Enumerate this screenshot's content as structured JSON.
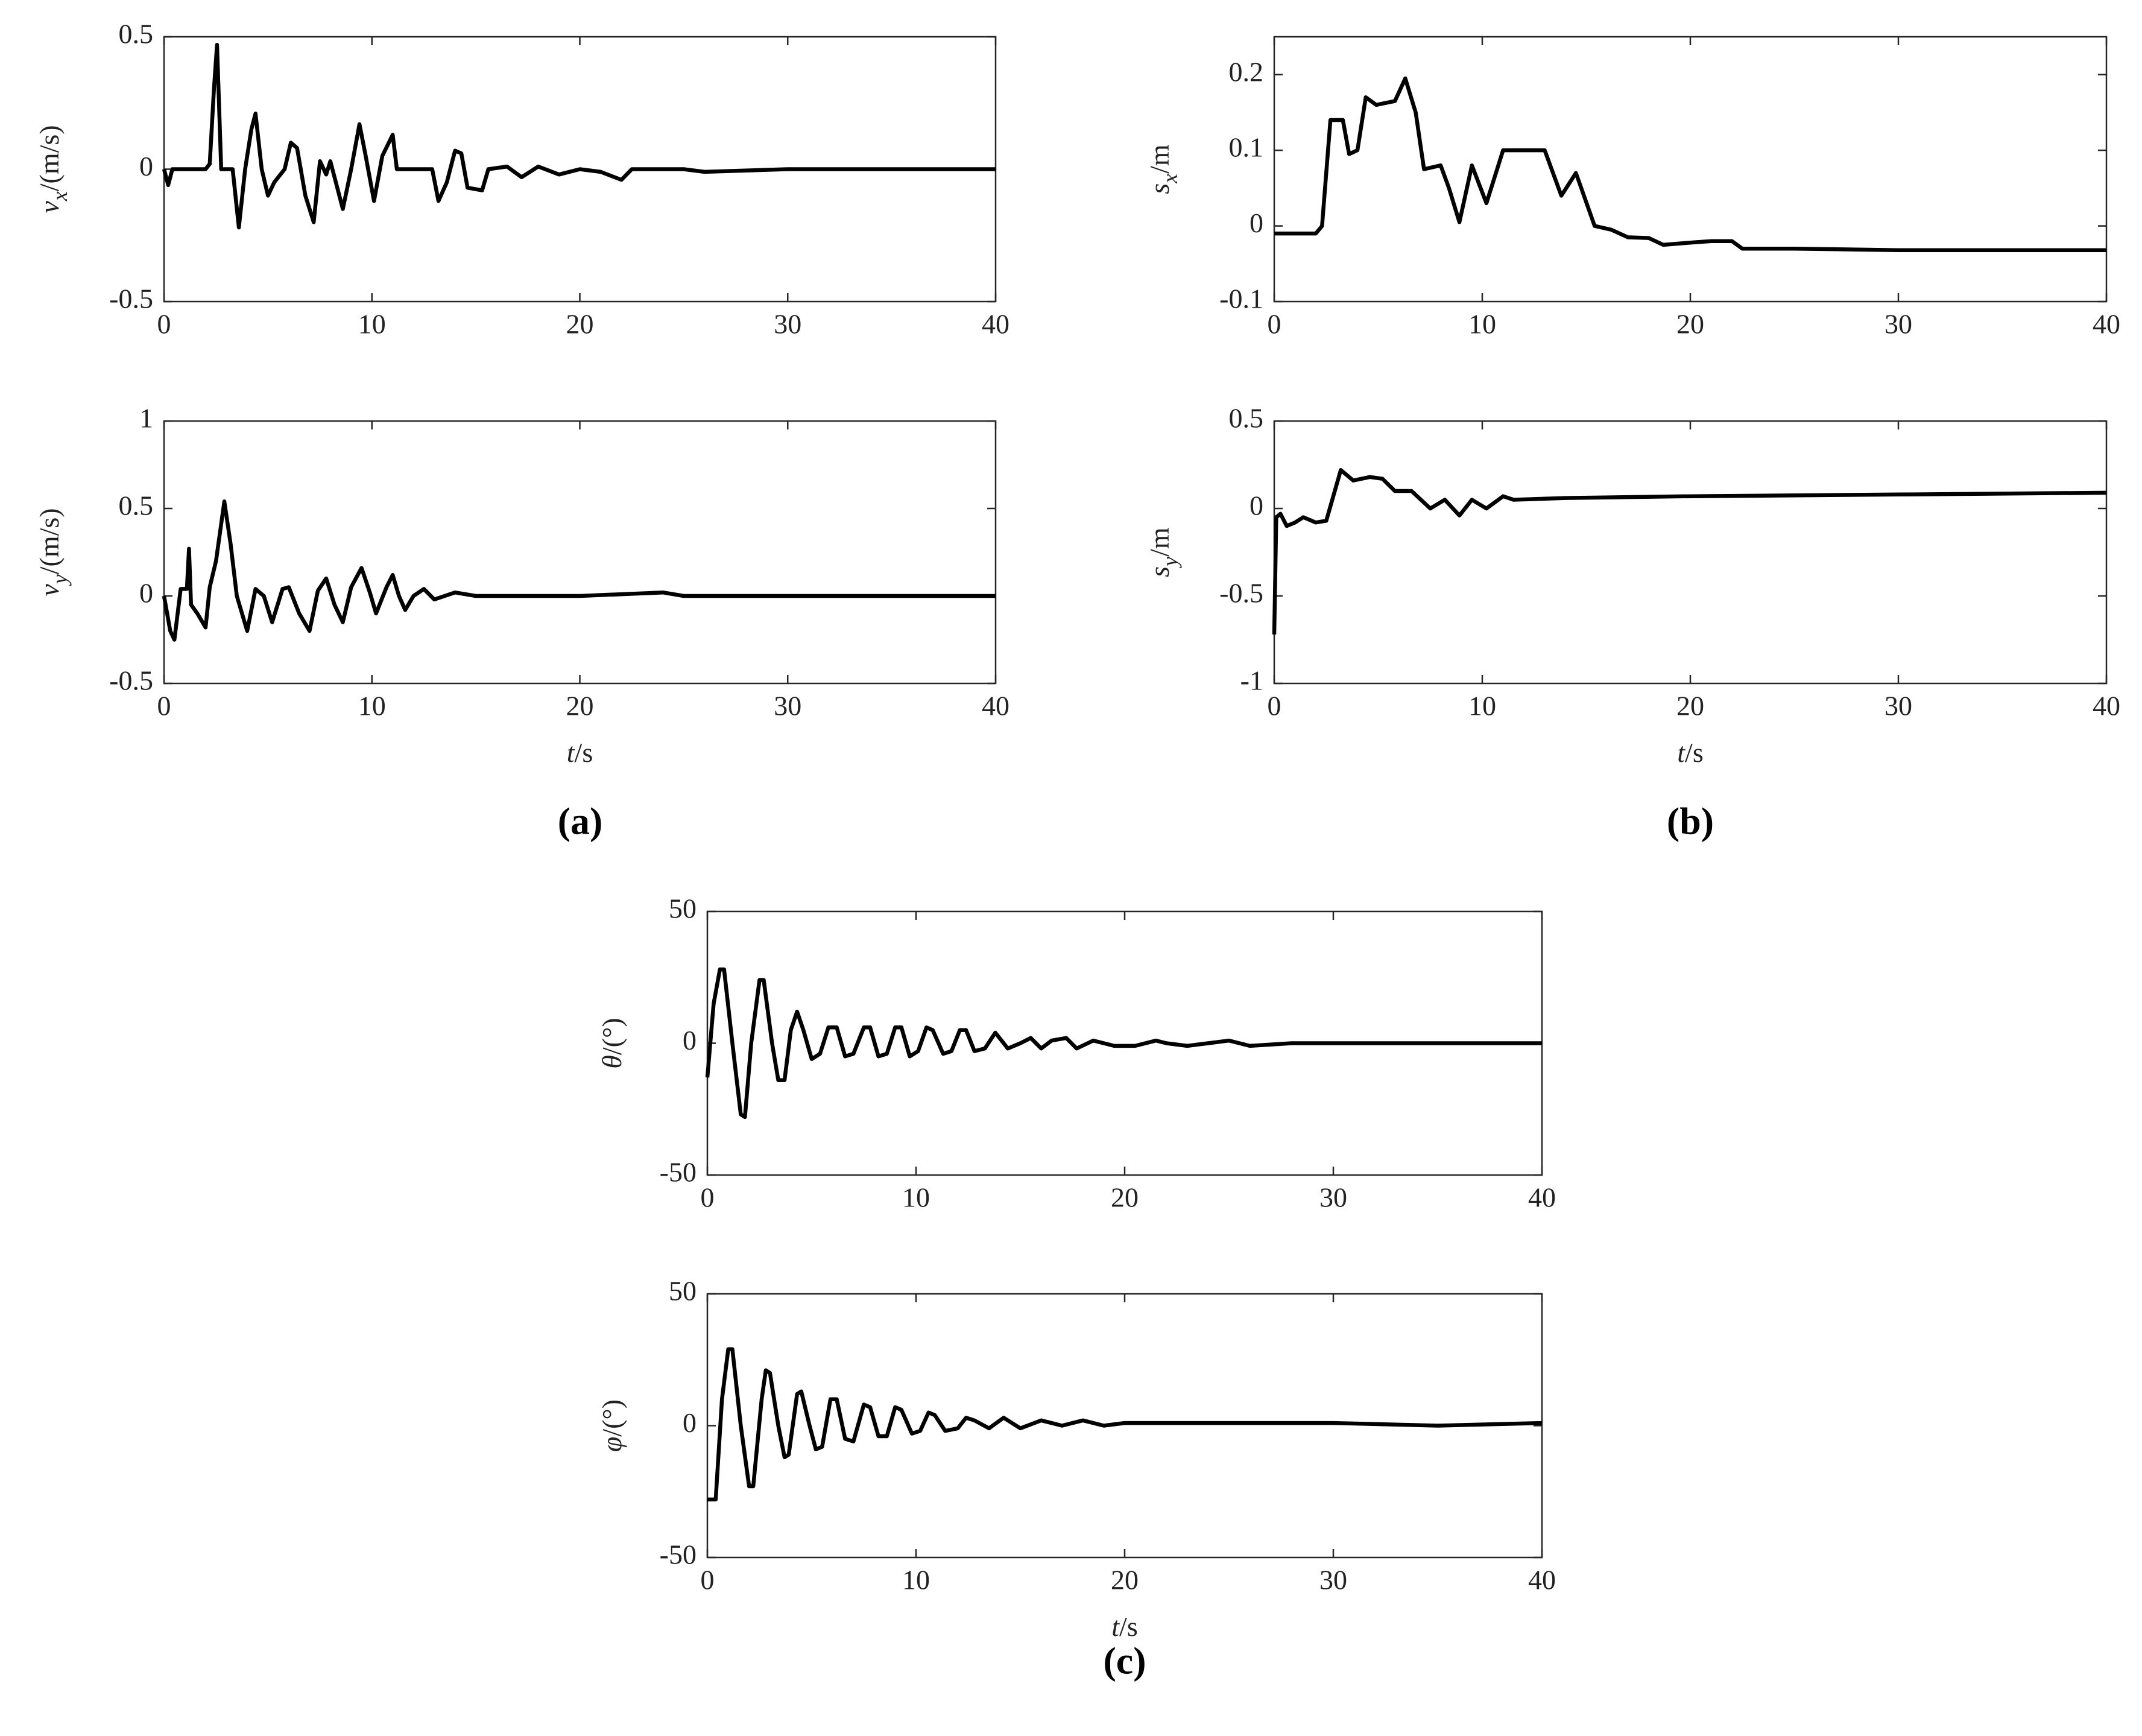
{
  "panel_labels": [
    "(a)",
    "(b)",
    "(c)"
  ],
  "chart_data": [
    {
      "type": "line",
      "color": "#000000",
      "ylabel": {
        "symbol": "v",
        "sub": "x",
        "unit": "/(m/s)"
      },
      "xlim": [
        0,
        40
      ],
      "xticks": [
        0,
        10,
        20,
        30,
        40
      ],
      "ylim": [
        -0.5,
        0.5
      ],
      "yticks": [
        -0.5,
        0,
        0.5
      ],
      "x": [
        0,
        0.2,
        0.4,
        2.0,
        2.2,
        2.4,
        2.55,
        2.75,
        3.3,
        3.6,
        3.9,
        4.2,
        4.4,
        4.7,
        5.0,
        5.3,
        5.8,
        6.1,
        6.4,
        6.8,
        7.2,
        7.5,
        7.8,
        8.0,
        8.6,
        9.0,
        9.4,
        9.7,
        10.1,
        10.5,
        11.0,
        11.2,
        12.9,
        13.2,
        13.6,
        14.0,
        14.3,
        14.6,
        15.3,
        15.6,
        16.5,
        17.2,
        18,
        19,
        20,
        21,
        22,
        22.5,
        25,
        26,
        30,
        35,
        40
      ],
      "values": [
        0,
        -0.06,
        0,
        0,
        0.02,
        0.3,
        0.47,
        0,
        0,
        -0.22,
        0,
        0.15,
        0.21,
        0,
        -0.1,
        -0.05,
        0,
        0.1,
        0.08,
        -0.1,
        -0.2,
        0.03,
        -0.02,
        0.03,
        -0.15,
        0,
        0.17,
        0.05,
        -0.12,
        0.05,
        0.13,
        0,
        0,
        -0.12,
        -0.05,
        0.07,
        0.06,
        -0.07,
        -0.08,
        0,
        0.01,
        -0.03,
        0.01,
        -0.02,
        0,
        -0.01,
        -0.04,
        0,
        0,
        -0.01,
        0,
        0,
        0
      ]
    },
    {
      "type": "line",
      "color": "#000000",
      "ylabel": {
        "symbol": "v",
        "sub": "y",
        "unit": "/(m/s)"
      },
      "xlabel": {
        "symbol": "t",
        "unit": "/s"
      },
      "xlim": [
        0,
        40
      ],
      "xticks": [
        0,
        10,
        20,
        30,
        40
      ],
      "ylim": [
        -0.5,
        1
      ],
      "yticks": [
        -0.5,
        0,
        0.5,
        1
      ],
      "x": [
        0,
        0.3,
        0.5,
        0.8,
        1.1,
        1.2,
        1.3,
        1.6,
        2.0,
        2.2,
        2.5,
        2.9,
        3.2,
        3.5,
        4.0,
        4.4,
        4.8,
        5.2,
        5.7,
        6.0,
        6.5,
        7.0,
        7.4,
        7.8,
        8.2,
        8.6,
        9.0,
        9.5,
        9.9,
        10.2,
        10.7,
        11.0,
        11.3,
        11.6,
        12.0,
        12.5,
        13,
        14,
        15,
        17,
        20,
        24,
        25,
        30,
        40
      ],
      "values": [
        0,
        -0.2,
        -0.25,
        0.04,
        0.04,
        0.27,
        -0.05,
        -0.1,
        -0.18,
        0.05,
        0.2,
        0.54,
        0.3,
        0,
        -0.2,
        0.04,
        0,
        -0.15,
        0.04,
        0.05,
        -0.1,
        -0.2,
        0.03,
        0.1,
        -0.05,
        -0.15,
        0.05,
        0.16,
        0.02,
        -0.1,
        0.05,
        0.12,
        0,
        -0.08,
        0,
        0.04,
        -0.02,
        0.02,
        0,
        0,
        0,
        0.02,
        0,
        0,
        0
      ]
    },
    {
      "type": "line",
      "color": "#000000",
      "ylabel": {
        "symbol": "s",
        "sub": "x",
        "unit": "/m"
      },
      "xlim": [
        0,
        40
      ],
      "xticks": [
        0,
        10,
        20,
        30,
        40
      ],
      "ylim": [
        -0.1,
        0.25
      ],
      "yticks": [
        -0.1,
        0,
        0.1,
        0.2
      ],
      "x": [
        0,
        2.0,
        2.3,
        2.7,
        3.3,
        3.6,
        4.0,
        4.4,
        4.9,
        5.8,
        6.3,
        6.8,
        7.2,
        8.0,
        8.4,
        8.9,
        9.5,
        10.2,
        11.0,
        13.0,
        13.8,
        14.5,
        15.4,
        16.2,
        17.0,
        18.0,
        18.7,
        20,
        21,
        22,
        22.5,
        25,
        30,
        40
      ],
      "values": [
        -0.01,
        -0.01,
        0,
        0.14,
        0.14,
        0.095,
        0.1,
        0.17,
        0.16,
        0.165,
        0.195,
        0.15,
        0.075,
        0.08,
        0.05,
        0.005,
        0.08,
        0.03,
        0.1,
        0.1,
        0.04,
        0.07,
        0,
        -0.005,
        -0.015,
        -0.016,
        -0.025,
        -0.022,
        -0.02,
        -0.02,
        -0.03,
        -0.03,
        -0.032,
        -0.032
      ]
    },
    {
      "type": "line",
      "color": "#000000",
      "ylabel": {
        "symbol": "s",
        "sub": "y",
        "unit": "/m"
      },
      "xlabel": {
        "symbol": "t",
        "unit": "/s"
      },
      "xlim": [
        0,
        40
      ],
      "xticks": [
        0,
        10,
        20,
        30,
        40
      ],
      "ylim": [
        -1,
        0.5
      ],
      "yticks": [
        -1,
        -0.5,
        0,
        0.5
      ],
      "x": [
        0,
        0.1,
        0.3,
        0.6,
        1.0,
        1.4,
        2.0,
        2.5,
        3.2,
        3.8,
        4.6,
        5.2,
        5.8,
        6.6,
        7.5,
        8.2,
        8.9,
        9.5,
        10.2,
        11.0,
        11.5,
        14,
        20,
        30,
        40
      ],
      "values": [
        -0.72,
        -0.05,
        -0.03,
        -0.1,
        -0.08,
        -0.05,
        -0.08,
        -0.07,
        0.22,
        0.16,
        0.18,
        0.17,
        0.1,
        0.1,
        0,
        0.05,
        -0.04,
        0.05,
        0,
        0.07,
        0.05,
        0.06,
        0.07,
        0.08,
        0.09
      ]
    },
    {
      "type": "line",
      "color": "#000000",
      "ylabel": {
        "symbol": "θ",
        "unit": "/(°)"
      },
      "xlim": [
        0,
        40
      ],
      "xticks": [
        0,
        10,
        20,
        30,
        40
      ],
      "ylim": [
        -50,
        50
      ],
      "yticks": [
        -50,
        0,
        50
      ],
      "x": [
        0,
        0.3,
        0.6,
        0.8,
        1.2,
        1.6,
        1.8,
        2.1,
        2.5,
        2.7,
        3.1,
        3.4,
        3.7,
        4.0,
        4.3,
        4.6,
        5.0,
        5.4,
        5.8,
        6.2,
        6.6,
        7.0,
        7.5,
        7.8,
        8.2,
        8.6,
        9.0,
        9.3,
        9.7,
        10.1,
        10.5,
        10.8,
        11.3,
        11.7,
        12.1,
        12.4,
        12.8,
        13.3,
        13.8,
        14.4,
        15,
        15.5,
        16,
        16.5,
        17.2,
        17.7,
        18.5,
        19.5,
        20.5,
        21.5,
        22,
        23,
        24,
        25,
        26,
        28,
        30,
        35,
        40
      ],
      "values": [
        -13,
        15,
        28,
        28,
        0,
        -27,
        -28,
        0,
        24,
        24,
        0,
        -14,
        -14,
        5,
        12,
        5,
        -6,
        -4,
        6,
        6,
        -5,
        -4,
        6,
        6,
        -5,
        -4,
        6,
        6,
        -5,
        -3,
        6,
        5,
        -4,
        -3,
        5,
        5,
        -3,
        -2,
        4,
        -2,
        0,
        2,
        -2,
        1,
        2,
        -2,
        1,
        -1,
        -1,
        1,
        0,
        -1,
        0,
        1,
        -1,
        0,
        0,
        0,
        0
      ]
    },
    {
      "type": "line",
      "color": "#000000",
      "ylabel": {
        "symbol": "φ",
        "unit": "/(°)"
      },
      "xlabel": {
        "symbol": "t",
        "unit": "/s"
      },
      "xlim": [
        0,
        40
      ],
      "xticks": [
        0,
        10,
        20,
        30,
        40
      ],
      "ylim": [
        -50,
        50
      ],
      "yticks": [
        -50,
        0,
        50
      ],
      "x": [
        0,
        0.4,
        0.7,
        1.0,
        1.2,
        1.6,
        2.0,
        2.2,
        2.6,
        2.8,
        3.0,
        3.4,
        3.7,
        3.9,
        4.3,
        4.5,
        4.9,
        5.2,
        5.5,
        5.9,
        6.2,
        6.6,
        7.0,
        7.5,
        7.8,
        8.2,
        8.6,
        9.0,
        9.3,
        9.8,
        10.2,
        10.6,
        10.9,
        11.4,
        12.0,
        12.4,
        12.8,
        13.5,
        14.2,
        15,
        16,
        17,
        18,
        19,
        20,
        22,
        25,
        30,
        35,
        40
      ],
      "values": [
        -28,
        -28,
        10,
        29,
        29,
        0,
        -23,
        -23,
        10,
        21,
        20,
        0,
        -12,
        -11,
        12,
        13,
        0,
        -9,
        -8,
        10,
        10,
        -5,
        -6,
        8,
        7,
        -4,
        -4,
        7,
        6,
        -3,
        -2,
        5,
        4,
        -2,
        -1,
        3,
        2,
        -1,
        3,
        -1,
        2,
        0,
        2,
        0,
        1,
        1,
        1,
        1,
        0,
        1
      ]
    }
  ]
}
